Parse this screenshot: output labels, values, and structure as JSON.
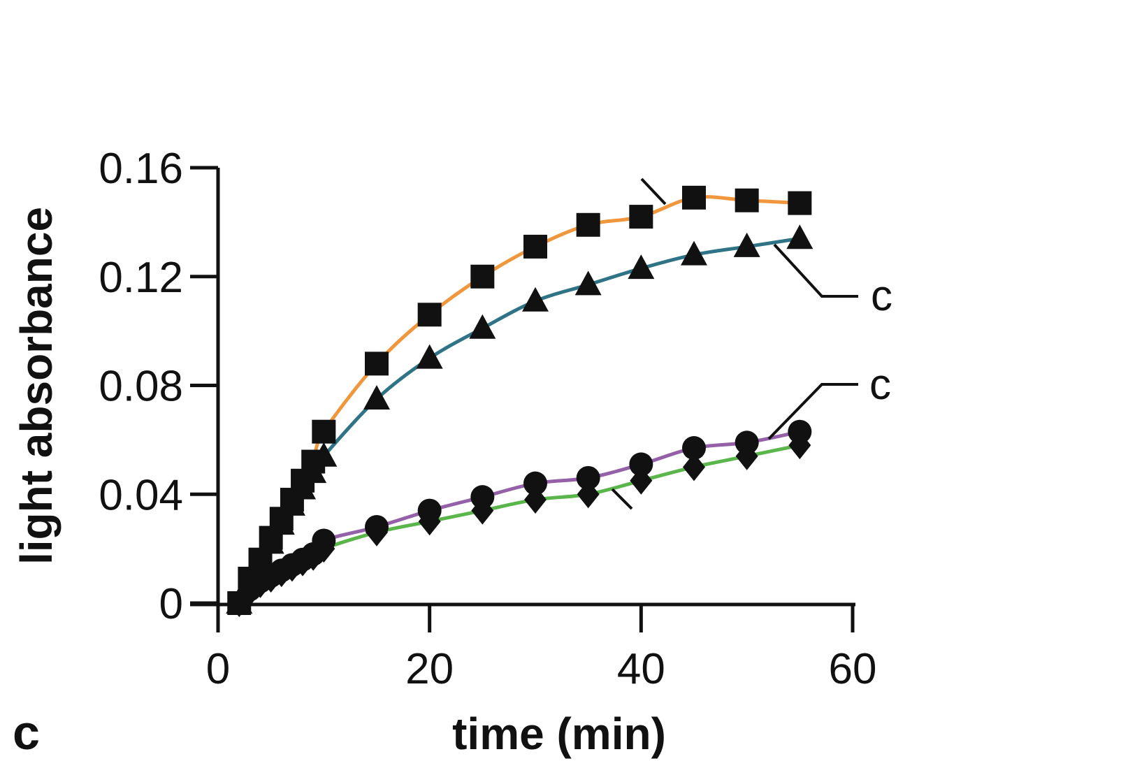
{
  "panel_label": "c",
  "chart_data": {
    "type": "line",
    "title": "",
    "xlabel": "time (min)",
    "ylabel": "light absorbance",
    "xlim": [
      0,
      60
    ],
    "ylim": [
      0,
      0.16
    ],
    "xticks": [
      0,
      20,
      40,
      60
    ],
    "yticks": [
      0,
      0.04,
      0.08,
      0.12,
      0.16
    ],
    "xtick_labels": [
      "0",
      "20",
      "40",
      "60"
    ],
    "ytick_labels": [
      "0",
      "0.04",
      "0.08",
      "0.12",
      "0.16"
    ],
    "grid": false,
    "annotations": [
      {
        "text": "c",
        "target_series": 1
      },
      {
        "text": "c",
        "target_series": 2
      }
    ],
    "series": [
      {
        "marker": "square",
        "color": "#f0963c",
        "x": [
          2,
          3,
          4,
          5,
          6,
          7,
          8,
          9,
          10,
          15,
          20,
          25,
          30,
          35,
          40,
          45,
          50,
          55
        ],
        "y": [
          0.0,
          0.009,
          0.016,
          0.024,
          0.031,
          0.038,
          0.045,
          0.052,
          0.063,
          0.088,
          0.106,
          0.12,
          0.131,
          0.139,
          0.142,
          0.149,
          0.148,
          0.147
        ]
      },
      {
        "marker": "triangle",
        "color": "#2f7387",
        "x": [
          2,
          3,
          4,
          5,
          6,
          7,
          8,
          9,
          10,
          15,
          20,
          25,
          30,
          35,
          40,
          45,
          50,
          55
        ],
        "y": [
          0.0,
          0.008,
          0.015,
          0.022,
          0.029,
          0.036,
          0.042,
          0.048,
          0.054,
          0.075,
          0.09,
          0.101,
          0.111,
          0.117,
          0.123,
          0.128,
          0.131,
          0.134
        ]
      },
      {
        "marker": "circle",
        "color": "#9461a8",
        "x": [
          2,
          3,
          4,
          5,
          6,
          7,
          8,
          9,
          10,
          15,
          20,
          25,
          30,
          35,
          40,
          45,
          50,
          55
        ],
        "y": [
          0.0,
          0.005,
          0.008,
          0.01,
          0.012,
          0.014,
          0.016,
          0.018,
          0.023,
          0.028,
          0.034,
          0.039,
          0.044,
          0.046,
          0.051,
          0.057,
          0.059,
          0.063
        ]
      },
      {
        "marker": "diamond",
        "color": "#5ab54b",
        "x": [
          2,
          3,
          4,
          5,
          6,
          7,
          8,
          9,
          10,
          15,
          20,
          25,
          30,
          35,
          40,
          45,
          50,
          55
        ],
        "y": [
          0.0,
          0.004,
          0.007,
          0.009,
          0.011,
          0.013,
          0.015,
          0.017,
          0.02,
          0.026,
          0.03,
          0.034,
          0.038,
          0.04,
          0.045,
          0.05,
          0.054,
          0.058
        ]
      }
    ]
  }
}
